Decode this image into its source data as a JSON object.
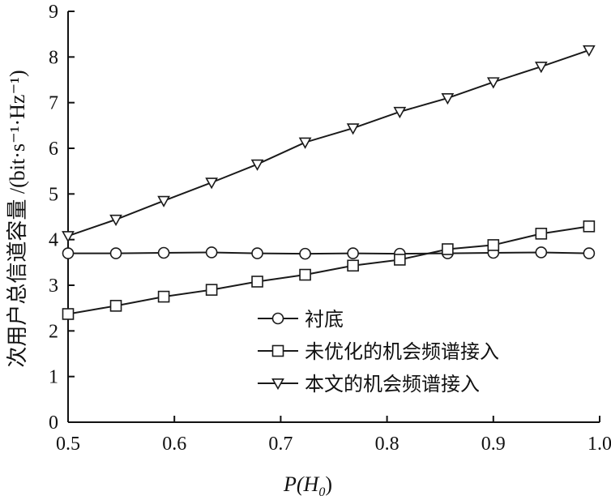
{
  "chart_data": {
    "type": "line",
    "xlabel": "P(H0)",
    "xlabel_parts": {
      "main": "P(H",
      "sub": "0",
      "close": ")"
    },
    "ylabel": "次用户总信道容量 /(bit·s⁻¹·Hz⁻¹)",
    "xlim": [
      0.5,
      1.0
    ],
    "ylim": [
      0,
      9
    ],
    "xticks": [
      "0.5",
      "0.6",
      "0.7",
      "0.8",
      "0.9",
      "1.0"
    ],
    "yticks": [
      "0",
      "1",
      "2",
      "3",
      "4",
      "5",
      "6",
      "7",
      "8",
      "9"
    ],
    "grid": false,
    "legend_position": "center-right",
    "x": [
      0.5,
      0.545,
      0.59,
      0.635,
      0.678,
      0.723,
      0.768,
      0.812,
      0.857,
      0.9,
      0.945,
      0.99
    ],
    "series": [
      {
        "name": "衬底",
        "marker": "circle",
        "values": [
          3.7,
          3.7,
          3.71,
          3.72,
          3.7,
          3.69,
          3.7,
          3.69,
          3.7,
          3.71,
          3.72,
          3.7
        ]
      },
      {
        "name": "未优化的机会频谱接入",
        "marker": "square",
        "values": [
          2.37,
          2.55,
          2.75,
          2.9,
          3.08,
          3.23,
          3.43,
          3.56,
          3.79,
          3.88,
          4.13,
          4.29
        ]
      },
      {
        "name": "本文的机会频谱接入",
        "marker": "triangle-down",
        "values": [
          4.08,
          4.44,
          4.85,
          5.25,
          5.65,
          6.13,
          6.44,
          6.8,
          7.1,
          7.45,
          7.79,
          8.15
        ]
      }
    ]
  }
}
